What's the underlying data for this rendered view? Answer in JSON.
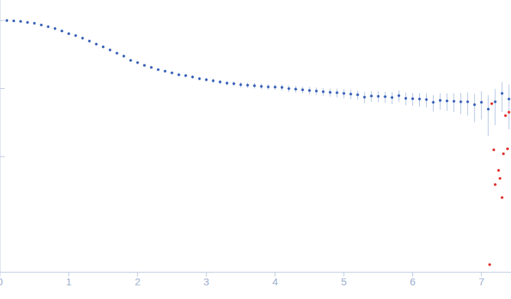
{
  "chart_data": {
    "type": "scatter",
    "log": "y",
    "grid": false,
    "tick_labels": "x",
    "xlim": [
      0,
      7.43
    ],
    "xticks": [
      0,
      1,
      2,
      3,
      4,
      5,
      6,
      7
    ],
    "ylim": [
      0.0002,
      2
    ],
    "yticks": [
      0.01,
      0.1,
      1
    ],
    "series": [
      {
        "color": "#3a63b8",
        "x": [
          0.1,
          0.2,
          0.3,
          0.4,
          0.5,
          0.6,
          0.7,
          0.8,
          0.9,
          1.0,
          1.1,
          1.2,
          1.3,
          1.4,
          1.5,
          1.6,
          1.7,
          1.8,
          1.9,
          2.0,
          2.1,
          2.2,
          2.3,
          2.4,
          2.5,
          2.6,
          2.7,
          2.8,
          2.9,
          3.0,
          3.1,
          3.2,
          3.3,
          3.4,
          3.5,
          3.6,
          3.7,
          3.8,
          3.9,
          4.0,
          4.1,
          4.2,
          4.3,
          4.4,
          4.5,
          4.6,
          4.7,
          4.8,
          4.9,
          5.0,
          5.1,
          5.2,
          5.3,
          5.4,
          5.5,
          5.6,
          5.7,
          5.8,
          5.9,
          6.0,
          6.1,
          6.2,
          6.3,
          6.4,
          6.5,
          6.6,
          6.7,
          6.8,
          6.9,
          7.0,
          7.1,
          7.2,
          7.3,
          7.4
        ],
        "values": [
          1.0,
          0.99,
          0.97,
          0.94,
          0.91,
          0.86,
          0.81,
          0.76,
          0.7,
          0.64,
          0.6,
          0.55,
          0.5,
          0.45,
          0.41,
          0.37,
          0.33,
          0.3,
          0.26,
          0.24,
          0.22,
          0.205,
          0.19,
          0.18,
          0.17,
          0.16,
          0.155,
          0.148,
          0.14,
          0.135,
          0.13,
          0.125,
          0.12,
          0.118,
          0.114,
          0.112,
          0.11,
          0.108,
          0.106,
          0.105,
          0.104,
          0.1,
          0.098,
          0.096,
          0.094,
          0.092,
          0.09,
          0.088,
          0.087,
          0.085,
          0.083,
          0.081,
          0.075,
          0.078,
          0.077,
          0.076,
          0.074,
          0.079,
          0.072,
          0.071,
          0.07,
          0.069,
          0.063,
          0.067,
          0.066,
          0.065,
          0.064,
          0.064,
          0.058,
          0.063,
          0.05,
          0.064,
          0.085,
          0.07
        ],
        "errors": [
          0.005,
          0.005,
          0.005,
          0.005,
          0.005,
          0.005,
          0.005,
          0.005,
          0.005,
          0.005,
          0.006,
          0.006,
          0.006,
          0.006,
          0.006,
          0.006,
          0.006,
          0.006,
          0.006,
          0.007,
          0.007,
          0.007,
          0.007,
          0.007,
          0.008,
          0.008,
          0.008,
          0.008,
          0.008,
          0.009,
          0.009,
          0.009,
          0.009,
          0.009,
          0.01,
          0.01,
          0.01,
          0.01,
          0.01,
          0.01,
          0.011,
          0.011,
          0.011,
          0.011,
          0.012,
          0.012,
          0.012,
          0.012,
          0.013,
          0.013,
          0.013,
          0.013,
          0.014,
          0.014,
          0.014,
          0.014,
          0.015,
          0.015,
          0.015,
          0.015,
          0.016,
          0.016,
          0.017,
          0.018,
          0.019,
          0.02,
          0.022,
          0.024,
          0.026,
          0.028,
          0.03,
          0.035,
          0.04,
          0.045
        ]
      },
      {
        "color": "#e0302c",
        "x": [
          7.12,
          7.15,
          7.18,
          7.2,
          7.25,
          7.27,
          7.3,
          7.32,
          7.35,
          7.38,
          7.4
        ],
        "values": [
          0.00026,
          0.06,
          0.0126,
          0.0039,
          0.0063,
          0.0048,
          0.0025,
          0.011,
          0.04,
          0.013,
          0.045
        ]
      }
    ]
  }
}
